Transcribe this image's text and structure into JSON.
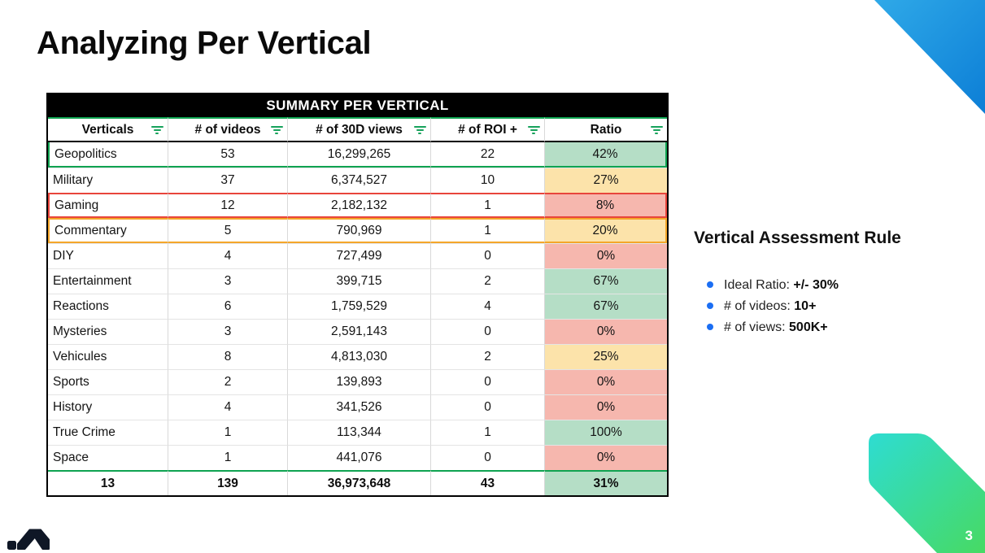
{
  "slide": {
    "title": "Analyzing Per Vertical",
    "page_number": "3"
  },
  "table": {
    "title": "SUMMARY PER VERTICAL",
    "columns": [
      {
        "label": "Verticals",
        "icon": "filter-icon"
      },
      {
        "label": "# of videos",
        "icon": "filter-icon"
      },
      {
        "label": "# of 30D views",
        "icon": "filter-icon"
      },
      {
        "label": "# of ROI +",
        "icon": "filter-icon"
      },
      {
        "label": "Ratio",
        "icon": "filter-icon"
      }
    ],
    "rows": [
      {
        "vertical": "Geopolitics",
        "videos": "53",
        "views": "16,299,265",
        "roi": "22",
        "ratio": "42%",
        "ratio_color": "green",
        "row_highlight": "green"
      },
      {
        "vertical": "Military",
        "videos": "37",
        "views": "6,374,527",
        "roi": "10",
        "ratio": "27%",
        "ratio_color": "yellow",
        "row_highlight": null
      },
      {
        "vertical": "Gaming",
        "videos": "12",
        "views": "2,182,132",
        "roi": "1",
        "ratio": "8%",
        "ratio_color": "red",
        "row_highlight": "red"
      },
      {
        "vertical": "Commentary",
        "videos": "5",
        "views": "790,969",
        "roi": "1",
        "ratio": "20%",
        "ratio_color": "yellow",
        "row_highlight": "orange"
      },
      {
        "vertical": "DIY",
        "videos": "4",
        "views": "727,499",
        "roi": "0",
        "ratio": "0%",
        "ratio_color": "red",
        "row_highlight": null
      },
      {
        "vertical": "Entertainment",
        "videos": "3",
        "views": "399,715",
        "roi": "2",
        "ratio": "67%",
        "ratio_color": "green",
        "row_highlight": null
      },
      {
        "vertical": "Reactions",
        "videos": "6",
        "views": "1,759,529",
        "roi": "4",
        "ratio": "67%",
        "ratio_color": "green",
        "row_highlight": null
      },
      {
        "vertical": "Mysteries",
        "videos": "3",
        "views": "2,591,143",
        "roi": "0",
        "ratio": "0%",
        "ratio_color": "red",
        "row_highlight": null
      },
      {
        "vertical": "Vehicules",
        "videos": "8",
        "views": "4,813,030",
        "roi": "2",
        "ratio": "25%",
        "ratio_color": "yellow",
        "row_highlight": null
      },
      {
        "vertical": "Sports",
        "videos": "2",
        "views": "139,893",
        "roi": "0",
        "ratio": "0%",
        "ratio_color": "red",
        "row_highlight": null
      },
      {
        "vertical": "History",
        "videos": "4",
        "views": "341,526",
        "roi": "0",
        "ratio": "0%",
        "ratio_color": "red",
        "row_highlight": null
      },
      {
        "vertical": "True Crime",
        "videos": "1",
        "views": "113,344",
        "roi": "1",
        "ratio": "100%",
        "ratio_color": "green",
        "row_highlight": null
      },
      {
        "vertical": "Space",
        "videos": "1",
        "views": "441,076",
        "roi": "0",
        "ratio": "0%",
        "ratio_color": "red",
        "row_highlight": null
      }
    ],
    "totals": {
      "vertical_count": "13",
      "videos": "139",
      "views": "36,973,648",
      "roi": "43",
      "ratio": "31%",
      "ratio_color": "green"
    }
  },
  "assessment": {
    "heading": "Vertical Assessment Rule",
    "bullets": [
      {
        "label": "Ideal Ratio: ",
        "value": "+/- 30%"
      },
      {
        "label": "# of videos: ",
        "value": "10+"
      },
      {
        "label": "# of views: ",
        "value": "500K+"
      }
    ]
  },
  "colors": {
    "ratio_green_bg": "#b5dec6",
    "ratio_yellow_bg": "#fce3aa",
    "ratio_red_bg": "#f6b7ae",
    "highlight_green_border": "#0fa351",
    "highlight_red_border": "#e8453c",
    "highlight_orange_border": "#f4a62a",
    "filter_icon_green": "#17a25c",
    "bullet_blue": "#1b6ef3",
    "triangle_blue_start": "#2fa9e8",
    "triangle_blue_end": "#0c7ed6",
    "ribbon_teal": "#2edcd2",
    "ribbon_green": "#47da63",
    "logo_navy": "#0f1726"
  }
}
